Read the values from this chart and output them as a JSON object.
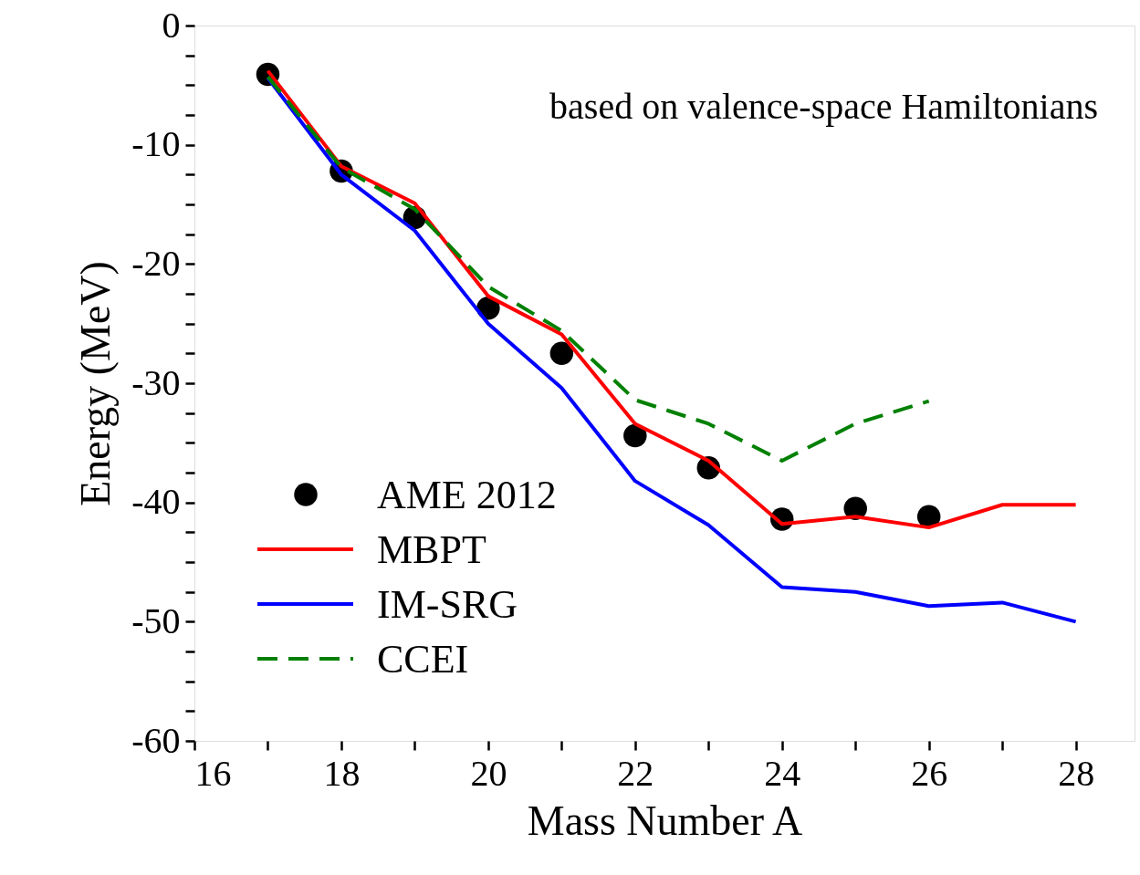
{
  "chart_data": {
    "type": "line",
    "xlabel": "Mass Number A",
    "ylabel": "Energy (MeV)",
    "annotations": [
      "based on valence-space Hamiltonians"
    ],
    "xlim": [
      16,
      28.8
    ],
    "xticks": [
      16,
      {
        "value": 17,
        "label": null
      },
      18,
      {
        "value": 19,
        "label": null
      },
      20,
      {
        "value": 21,
        "label": null
      },
      22,
      {
        "value": 23,
        "label": null
      },
      24,
      {
        "value": 25,
        "label": null
      },
      26,
      {
        "value": 27,
        "label": null
      },
      28
    ],
    "ylim": [
      -60,
      0
    ],
    "yticks": [
      -60,
      {
        "value": -57.5,
        "label": null
      },
      {
        "value": -55,
        "label": null
      },
      {
        "value": -52.5,
        "label": null
      },
      -50,
      {
        "value": -47.5,
        "label": null
      },
      {
        "value": -45,
        "label": null
      },
      {
        "value": -42.5,
        "label": null
      },
      -40,
      {
        "value": -37.5,
        "label": null
      },
      {
        "value": -35,
        "label": null
      },
      {
        "value": -32.5,
        "label": null
      },
      -30,
      {
        "value": -27.5,
        "label": null
      },
      {
        "value": -25,
        "label": null
      },
      {
        "value": -22.5,
        "label": null
      },
      -20,
      {
        "value": -17.5,
        "label": null
      },
      {
        "value": -15,
        "label": null
      },
      {
        "value": -12.5,
        "label": null
      },
      -10,
      {
        "value": -7.5,
        "label": null
      },
      {
        "value": -5,
        "label": null
      },
      {
        "value": -2.5,
        "label": null
      },
      0
    ],
    "grid": false,
    "legend": "bottom left",
    "line_style": "solid",
    "series": [
      {
        "name": "AME 2012",
        "type": "scatter",
        "marker": "circle",
        "color": "#000000",
        "x": [
          17,
          18,
          19,
          20,
          21,
          22,
          23,
          24,
          25,
          26
        ],
        "values": [
          -4.1,
          -12.2,
          -16.1,
          -23.7,
          -27.5,
          -34.4,
          -37.1,
          -41.4,
          -40.5,
          -41.2
        ]
      },
      {
        "name": "MBPT",
        "color": "#ff0000",
        "x": [
          17,
          18,
          19,
          20,
          21,
          22,
          23,
          24,
          25,
          26,
          27,
          28
        ],
        "values": [
          -3.8,
          -11.8,
          -14.9,
          -22.7,
          -25.9,
          -33.4,
          -36.5,
          -41.8,
          -41.2,
          -42.1,
          -40.2,
          -40.2
        ]
      },
      {
        "name": "IM-SRG",
        "color": "#0000ff",
        "x": [
          17,
          18,
          19,
          20,
          21,
          22,
          23,
          24,
          25,
          26,
          27,
          28
        ],
        "values": [
          -4.4,
          -12.5,
          -17.2,
          -25.0,
          -30.4,
          -38.2,
          -41.9,
          -47.1,
          -47.5,
          -48.7,
          -48.4,
          -50.0
        ]
      },
      {
        "name": "CCEI",
        "line_style": "dashed",
        "color": "#008000",
        "x": [
          17,
          18,
          19,
          20,
          21,
          22,
          23,
          24,
          25,
          26
        ],
        "values": [
          -4.3,
          -11.9,
          -15.4,
          -21.9,
          -25.6,
          -31.4,
          -33.4,
          -36.5,
          -33.4,
          -31.5
        ]
      }
    ]
  }
}
